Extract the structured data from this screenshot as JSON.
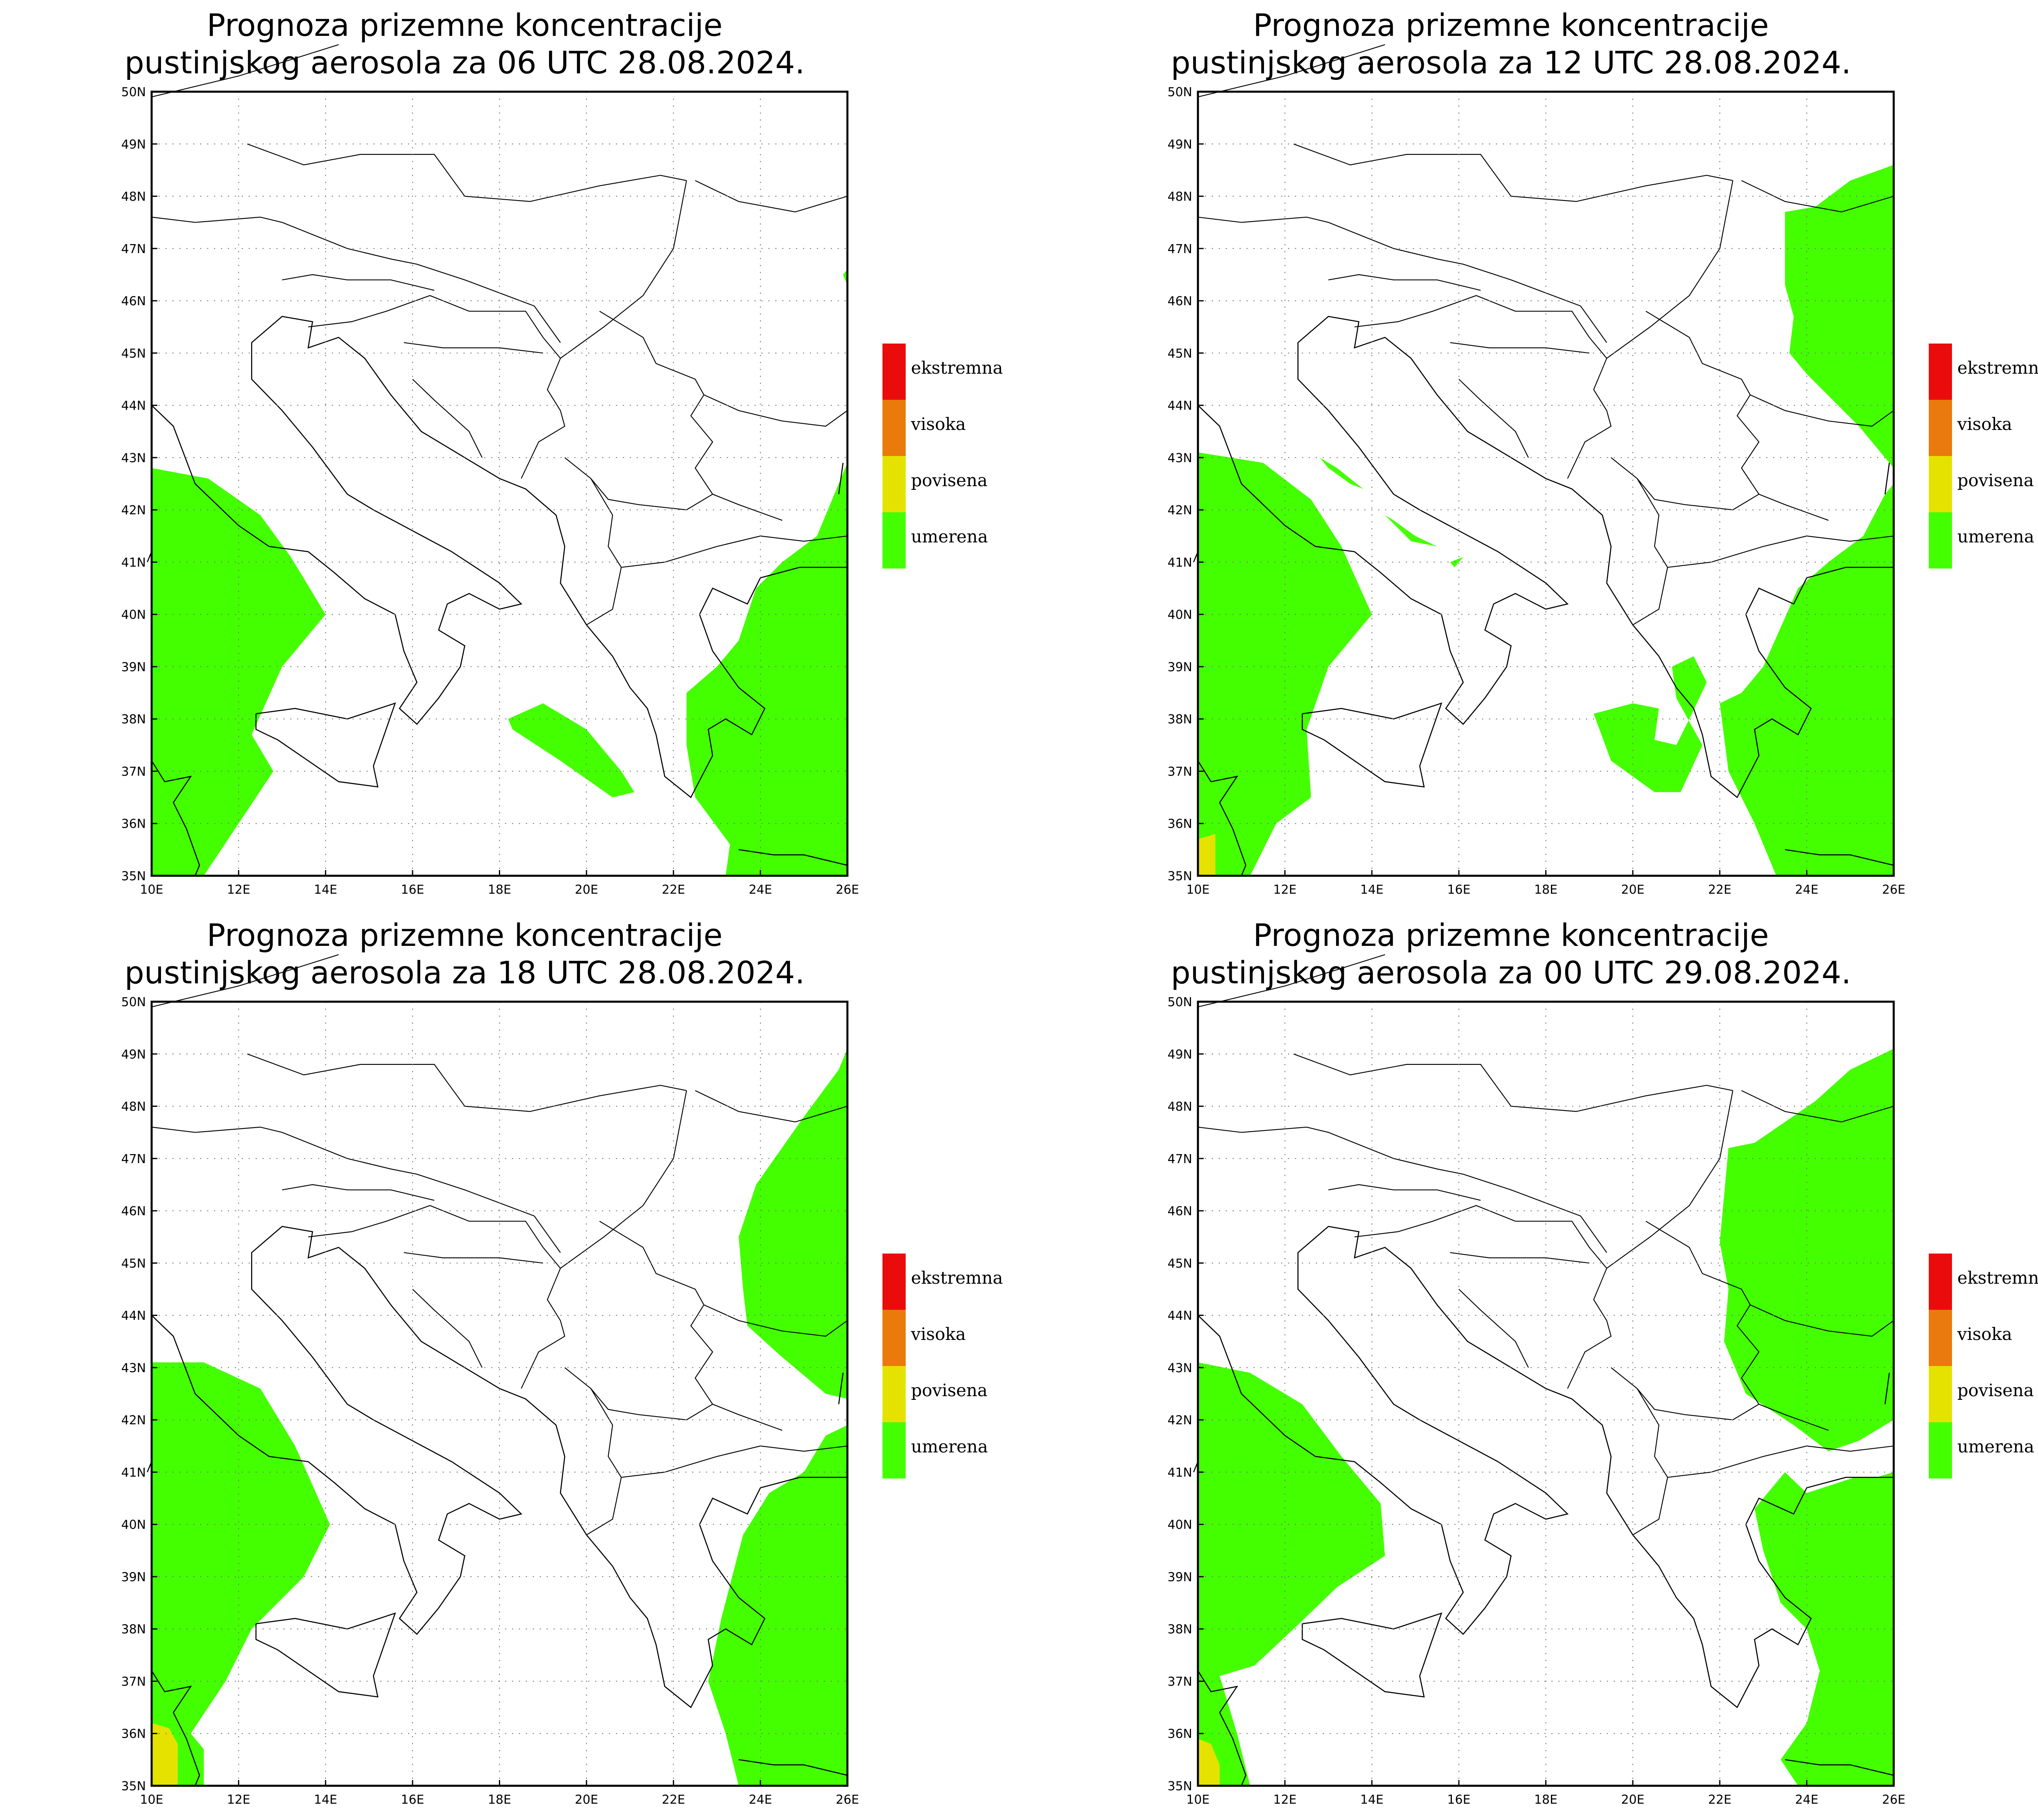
{
  "colors": {
    "ekstremna": "#ea0c0c",
    "visoka": "#ea7a0c",
    "povisena": "#e6e200",
    "umerena": "#44ff00",
    "coast": "#000000",
    "grid": "#777777"
  },
  "map": {
    "lon_range": [
      10,
      26
    ],
    "lat_range": [
      35,
      50
    ],
    "lon_ticks": [
      "10E",
      "12E",
      "14E",
      "16E",
      "18E",
      "20E",
      "22E",
      "24E",
      "26E"
    ],
    "lat_ticks": [
      "35N",
      "36N",
      "37N",
      "38N",
      "39N",
      "40N",
      "41N",
      "42N",
      "43N",
      "44N",
      "45N",
      "46N",
      "47N",
      "48N",
      "49N",
      "50N"
    ],
    "grid": true
  },
  "legend": {
    "items": [
      {
        "label": "ekstremna",
        "color_key": "ekstremna"
      },
      {
        "label": "visoka",
        "color_key": "visoka"
      },
      {
        "label": "povisena",
        "color_key": "povisena"
      },
      {
        "label": "umerena",
        "color_key": "umerena"
      }
    ],
    "placement": "right"
  },
  "panels": [
    {
      "title_line1": "Prognoza prizemne koncentracije",
      "title_line2": "pustinjskog aerosola za 06 UTC 28.08.2024."
    },
    {
      "title_line1": "Prognoza prizemne koncentracije",
      "title_line2": "pustinjskog aerosola za 12 UTC 28.08.2024."
    },
    {
      "title_line1": "Prognoza prizemne koncentracije",
      "title_line2": "pustinjskog aerosola za 18 UTC 28.08.2024."
    },
    {
      "title_line1": "Prognoza prizemne koncentracije",
      "title_line2": "pustinjskog aerosola za 00 UTC 29.08.2024."
    }
  ],
  "regions": [
    [
      {
        "level": "umerena",
        "points": [
          [
            10,
            42.8
          ],
          [
            11.3,
            42.6
          ],
          [
            12.5,
            41.9
          ],
          [
            13.2,
            41.1
          ],
          [
            14,
            40
          ],
          [
            13,
            39
          ],
          [
            12.3,
            37.7
          ],
          [
            12.8,
            37
          ],
          [
            12,
            36
          ],
          [
            11.2,
            35
          ],
          [
            10,
            35
          ]
        ]
      },
      {
        "level": "umerena",
        "points": [
          [
            18.2,
            38
          ],
          [
            19,
            38.3
          ],
          [
            20,
            37.8
          ],
          [
            20.8,
            37
          ],
          [
            21.1,
            36.6
          ],
          [
            20.6,
            36.5
          ],
          [
            19.4,
            37.2
          ],
          [
            18.3,
            37.8
          ]
        ]
      },
      {
        "level": "umerena",
        "points": [
          [
            22.3,
            38.5
          ],
          [
            23,
            39
          ],
          [
            23.5,
            39.5
          ],
          [
            23.9,
            40.5
          ],
          [
            24.5,
            41
          ],
          [
            25.3,
            41.5
          ],
          [
            25.8,
            42.5
          ],
          [
            26,
            42.9
          ],
          [
            26,
            35
          ],
          [
            23.2,
            35
          ],
          [
            23.3,
            35.6
          ],
          [
            22.5,
            36.5
          ],
          [
            22.3,
            37.5
          ]
        ]
      },
      {
        "level": "umerena",
        "points": [
          [
            25.9,
            46.5
          ],
          [
            26,
            46.3
          ],
          [
            26,
            46.6
          ]
        ]
      }
    ],
    [
      {
        "level": "umerena",
        "points": [
          [
            10,
            43.1
          ],
          [
            11.5,
            42.9
          ],
          [
            12.6,
            42.2
          ],
          [
            13.3,
            41.3
          ],
          [
            14,
            40
          ],
          [
            13,
            39
          ],
          [
            12.5,
            37.8
          ],
          [
            12.6,
            36.5
          ],
          [
            11.8,
            36
          ],
          [
            11.2,
            35
          ],
          [
            10,
            35
          ]
        ]
      },
      {
        "level": "umerena",
        "points": [
          [
            12.8,
            43
          ],
          [
            13.2,
            42.8
          ],
          [
            13.8,
            42.4
          ],
          [
            13.5,
            42.5
          ],
          [
            13,
            42.8
          ]
        ]
      },
      {
        "level": "umerena",
        "points": [
          [
            14.3,
            41.9
          ],
          [
            14.9,
            41.4
          ],
          [
            15.5,
            41.3
          ],
          [
            15,
            41.5
          ],
          [
            14.5,
            41.8
          ]
        ]
      },
      {
        "level": "umerena",
        "points": [
          [
            15.8,
            41
          ],
          [
            16.1,
            41.1
          ],
          [
            15.9,
            40.9
          ]
        ]
      },
      {
        "level": "umerena",
        "points": [
          [
            19.1,
            38.1
          ],
          [
            20,
            38.3
          ],
          [
            20.6,
            38.2
          ],
          [
            20.5,
            37.6
          ],
          [
            21,
            37.5
          ],
          [
            21.3,
            38
          ],
          [
            21.7,
            38.7
          ],
          [
            21.4,
            39.2
          ],
          [
            20.9,
            39
          ],
          [
            21,
            38.4
          ],
          [
            21.6,
            37.5
          ],
          [
            21.1,
            36.6
          ],
          [
            20.5,
            36.6
          ],
          [
            19.5,
            37.2
          ]
        ]
      },
      {
        "level": "umerena",
        "points": [
          [
            22,
            38.3
          ],
          [
            22.5,
            38.5
          ],
          [
            23,
            39
          ],
          [
            23.8,
            40.5
          ],
          [
            24.5,
            41
          ],
          [
            25.3,
            41.5
          ],
          [
            25.8,
            42.3
          ],
          [
            26,
            42.5
          ],
          [
            26,
            35
          ],
          [
            23.3,
            35
          ],
          [
            22.8,
            36
          ],
          [
            22.2,
            37
          ]
        ]
      },
      {
        "level": "umerena",
        "points": [
          [
            23.5,
            47.7
          ],
          [
            24.2,
            47.8
          ],
          [
            25,
            48.3
          ],
          [
            26,
            48.6
          ],
          [
            26,
            42.8
          ],
          [
            25.2,
            43.6
          ],
          [
            24,
            44.6
          ],
          [
            23.6,
            45
          ],
          [
            23.7,
            45.7
          ],
          [
            23.5,
            46.3
          ]
        ]
      },
      {
        "level": "povisena",
        "points": [
          [
            10,
            35.7
          ],
          [
            10.4,
            35.8
          ],
          [
            10.4,
            35
          ],
          [
            10,
            35
          ]
        ]
      }
    ],
    [
      {
        "level": "umerena",
        "points": [
          [
            10,
            43.1
          ],
          [
            11.2,
            43.1
          ],
          [
            12.5,
            42.6
          ],
          [
            13.3,
            41.5
          ],
          [
            14.1,
            40
          ],
          [
            13.5,
            39
          ],
          [
            12.3,
            38
          ],
          [
            11.7,
            37
          ],
          [
            11.3,
            36.5
          ],
          [
            10.9,
            36
          ],
          [
            11.2,
            35.7
          ],
          [
            11.2,
            35
          ],
          [
            10,
            35
          ],
          [
            10,
            37
          ]
        ]
      },
      {
        "level": "umerena",
        "points": [
          [
            23.1,
            38.2
          ],
          [
            23.6,
            39.8
          ],
          [
            24.2,
            40.6
          ],
          [
            25,
            41
          ],
          [
            25.5,
            41.7
          ],
          [
            26,
            41.9
          ],
          [
            26,
            35
          ],
          [
            23.5,
            35
          ],
          [
            23.2,
            36
          ],
          [
            22.8,
            37
          ]
        ]
      },
      {
        "level": "umerena",
        "points": [
          [
            23.5,
            45.5
          ],
          [
            23.9,
            46.5
          ],
          [
            25,
            47.8
          ],
          [
            25.8,
            48.7
          ],
          [
            26,
            49.1
          ],
          [
            26,
            42.4
          ],
          [
            25.5,
            42.5
          ],
          [
            24.5,
            43.2
          ],
          [
            23.7,
            43.8
          ],
          [
            23.6,
            44.5
          ]
        ]
      },
      {
        "level": "povisena",
        "points": [
          [
            10,
            36.2
          ],
          [
            10.4,
            36.1
          ],
          [
            10.6,
            35.8
          ],
          [
            10.6,
            35
          ],
          [
            10,
            35
          ]
        ]
      }
    ],
    [
      {
        "level": "umerena",
        "points": [
          [
            10,
            43.1
          ],
          [
            11.2,
            42.9
          ],
          [
            12.4,
            42.3
          ],
          [
            13.3,
            41.3
          ],
          [
            14.2,
            40.4
          ],
          [
            14.3,
            39.4
          ],
          [
            13.2,
            38.8
          ],
          [
            12.2,
            38
          ],
          [
            11.3,
            37.3
          ],
          [
            10.5,
            37.1
          ],
          [
            10.9,
            36
          ],
          [
            11.2,
            35
          ],
          [
            10,
            35
          ]
        ]
      },
      {
        "level": "umerena",
        "points": [
          [
            23.5,
            41
          ],
          [
            24,
            40.6
          ],
          [
            25.1,
            40.9
          ],
          [
            25.6,
            40.9
          ],
          [
            26,
            41
          ],
          [
            26,
            35
          ],
          [
            23.8,
            35
          ],
          [
            23.4,
            35.5
          ],
          [
            24,
            36.2
          ],
          [
            24.3,
            37.2
          ],
          [
            24,
            38
          ],
          [
            23.4,
            38.5
          ],
          [
            23,
            39.5
          ],
          [
            22.8,
            40.3
          ]
        ]
      },
      {
        "level": "umerena",
        "points": [
          [
            22.2,
            47.2
          ],
          [
            22.8,
            47.3
          ],
          [
            24.2,
            48.1
          ],
          [
            25,
            48.7
          ],
          [
            26,
            49.1
          ],
          [
            26,
            42
          ],
          [
            25.2,
            41.6
          ],
          [
            24.5,
            41.4
          ],
          [
            23.7,
            41.9
          ],
          [
            22.6,
            42.5
          ],
          [
            22.1,
            43.5
          ],
          [
            22.2,
            44.5
          ],
          [
            22,
            45.4
          ]
        ]
      },
      {
        "level": "povisena",
        "points": [
          [
            10,
            35.9
          ],
          [
            10.3,
            35.8
          ],
          [
            10.5,
            35.4
          ],
          [
            10.5,
            35
          ],
          [
            10,
            35
          ]
        ]
      }
    ]
  ]
}
